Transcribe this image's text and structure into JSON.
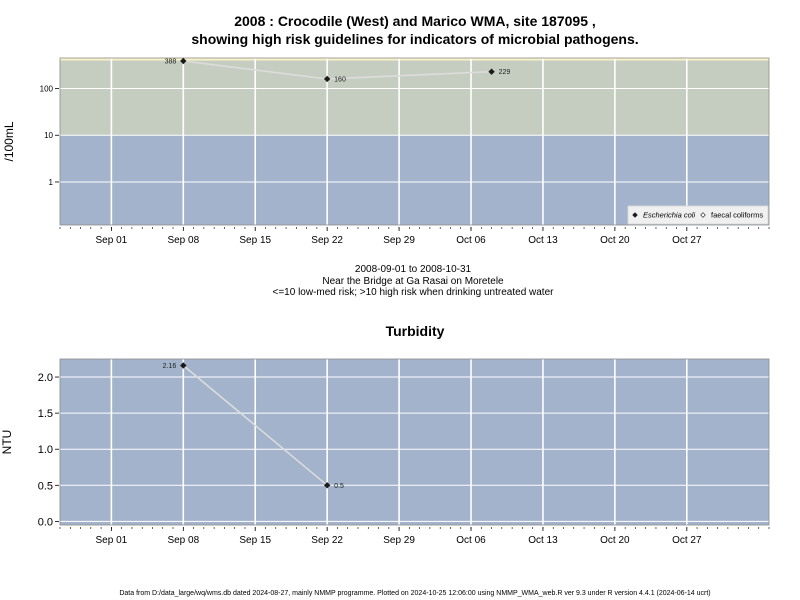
{
  "chart_data": [
    {
      "type": "line",
      "title_line1": "2008 : Crocodile (West) and Marico WMA, site 187095 ,",
      "title_line2": "showing high risk guidelines for indicators of microbial pathogens.",
      "ylabel": "/100mL",
      "y_scale": "log",
      "ylim": [
        0.12,
        450
      ],
      "yticks": [
        {
          "value": 1,
          "label": "1"
        },
        {
          "value": 10,
          "label": "10"
        },
        {
          "value": 100,
          "label": "100"
        }
      ],
      "xlim": [
        "2008-08-27",
        "2008-11-04"
      ],
      "xticks": [
        {
          "date": "2008-09-01",
          "label": "Sep 01"
        },
        {
          "date": "2008-09-08",
          "label": "Sep 08"
        },
        {
          "date": "2008-09-15",
          "label": "Sep 15"
        },
        {
          "date": "2008-09-22",
          "label": "Sep 22"
        },
        {
          "date": "2008-09-29",
          "label": "Sep 29"
        },
        {
          "date": "2008-10-06",
          "label": "Oct 06"
        },
        {
          "date": "2008-10-13",
          "label": "Oct 13"
        },
        {
          "date": "2008-10-20",
          "label": "Oct 20"
        },
        {
          "date": "2008-10-27",
          "label": "Oct 27"
        }
      ],
      "risk_bands": [
        {
          "from": 0.12,
          "to": 10,
          "color": "#a2b3cb"
        },
        {
          "from": 10,
          "to": 400,
          "color": "#c5cdc1"
        },
        {
          "from": 400,
          "to": 450,
          "color": "#f8f3c6"
        }
      ],
      "series": [
        {
          "name": "Escherichia coli",
          "marker": "filled-diamond",
          "points": [
            {
              "date": "2008-09-08",
              "value": 388,
              "label": "388"
            },
            {
              "date": "2008-09-22",
              "value": 160,
              "label": "160"
            },
            {
              "date": "2008-10-08",
              "value": 229,
              "label": "229"
            }
          ]
        }
      ],
      "legend": {
        "placement": "bottom-right",
        "items": [
          {
            "label": "Escherichia coli",
            "marker": "filled-diamond",
            "italic": true
          },
          {
            "label": "faecal coliforms",
            "marker": "open-diamond",
            "italic": false
          }
        ]
      },
      "caption": [
        "2008-09-01 to 2008-10-31",
        "Near the Bridge at Ga Rasai on Moretele",
        "<=10 low-med risk; >10 high risk when drinking untreated water"
      ]
    },
    {
      "type": "line",
      "title": "Turbidity",
      "ylabel": "NTU",
      "ylim": [
        -0.05,
        2.25
      ],
      "yticks": [
        {
          "value": 0,
          "label": "0.0"
        },
        {
          "value": 0.5,
          "label": "0.5"
        },
        {
          "value": 1,
          "label": "1.0"
        },
        {
          "value": 1.5,
          "label": "1.5"
        },
        {
          "value": 2,
          "label": "2.0"
        }
      ],
      "xlim": [
        "2008-08-27",
        "2008-11-04"
      ],
      "xticks": [
        {
          "date": "2008-09-01",
          "label": "Sep 01"
        },
        {
          "date": "2008-09-08",
          "label": "Sep 08"
        },
        {
          "date": "2008-09-15",
          "label": "Sep 15"
        },
        {
          "date": "2008-09-22",
          "label": "Sep 22"
        },
        {
          "date": "2008-09-29",
          "label": "Sep 29"
        },
        {
          "date": "2008-10-06",
          "label": "Oct 06"
        },
        {
          "date": "2008-10-13",
          "label": "Oct 13"
        },
        {
          "date": "2008-10-20",
          "label": "Oct 20"
        },
        {
          "date": "2008-10-27",
          "label": "Oct 27"
        }
      ],
      "background": "#a2b3cb",
      "series": [
        {
          "points": [
            {
              "date": "2008-09-08",
              "value": 2.16,
              "label": "2.16"
            },
            {
              "date": "2008-09-22",
              "value": 0.5,
              "label": "0.5"
            }
          ]
        }
      ]
    }
  ],
  "footer": "Data from D:/data_large/wq/wms.db dated 2024-08-27, mainly NMMP programme. Plotted on 2024-10-25 12:06:00 using NMMP_WMA_web.R ver 9.3 under R version 4.4.1 (2024-06-14 ucrt)"
}
